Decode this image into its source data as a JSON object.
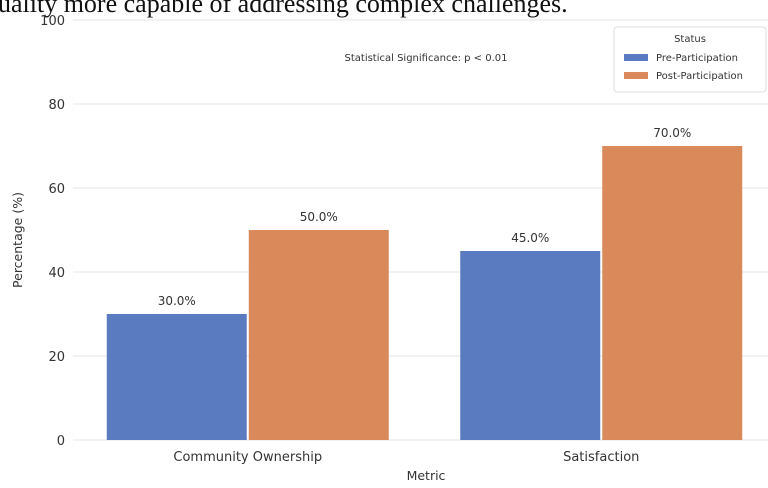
{
  "top_text": "uality more capable of addressing complex challenges.",
  "chart_data": {
    "type": "bar",
    "categories": [
      "Community Ownership",
      "Satisfaction"
    ],
    "series": [
      {
        "name": "Pre-Participation",
        "values": [
          30.0,
          45.0
        ],
        "color": "#5a7bc0",
        "labels": [
          "30.0%",
          "45.0%"
        ]
      },
      {
        "name": "Post-Participation",
        "values": [
          50.0,
          70.0
        ],
        "color": "#d9895a",
        "labels": [
          "50.0%",
          "70.0%"
        ]
      }
    ],
    "xlabel": "Metric",
    "ylabel": "Percentage (%)",
    "ylim": [
      0,
      100
    ],
    "yticks": [
      0,
      20,
      40,
      60,
      80,
      100
    ],
    "grid": true,
    "legend": {
      "title": "Status",
      "placement": "top-right"
    },
    "annotation": "Statistical Significance: p < 0.01"
  }
}
